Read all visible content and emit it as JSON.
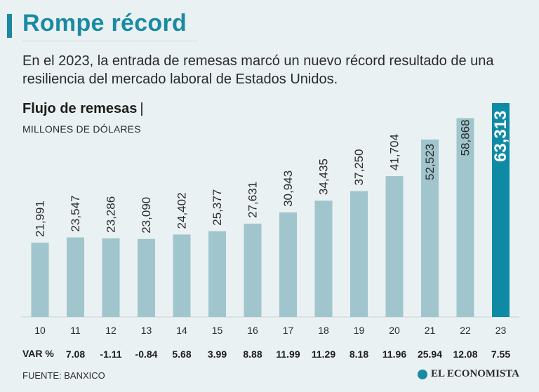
{
  "header": {
    "title": "Rompe récord",
    "subtitle": "En el 2023, la entrada de remesas marcó un nuevo récord resultado de una resiliencia del mercado laboral de Estados Unidos."
  },
  "chart_data": {
    "type": "bar",
    "title": "Flujo de remesas",
    "title_separator": "|",
    "units_label": "MILLONES DE DÓLARES",
    "categories": [
      "10",
      "11",
      "12",
      "13",
      "14",
      "15",
      "16",
      "17",
      "18",
      "19",
      "20",
      "21",
      "22",
      "23"
    ],
    "values": [
      21991,
      23547,
      23286,
      23090,
      24402,
      25377,
      27631,
      30943,
      34435,
      37250,
      41704,
      52523,
      58868,
      63313
    ],
    "value_labels": [
      "21,991",
      "23,547",
      "23,286",
      "23,090",
      "24,402",
      "25,377",
      "27,631",
      "30,943",
      "34,435",
      "37,250",
      "41,704",
      "52,523",
      "58,868",
      "63,313"
    ],
    "highlight_index": 13,
    "var_label": "VAR %",
    "var_pct": [
      "7.08",
      "-1.11",
      "-0.84",
      "5.68",
      "3.99",
      "8.88",
      "11.99",
      "11.29",
      "8.18",
      "11.96",
      "25.94",
      "12.08",
      "7.55"
    ],
    "grid": false,
    "colors": {
      "bar": "#a0c5cc",
      "highlight": "#0f8aa5",
      "title": "#1a8aa3"
    }
  },
  "footer": {
    "source": "FUENTE: BANXICO",
    "logo": "EL ECONOMISTA"
  }
}
